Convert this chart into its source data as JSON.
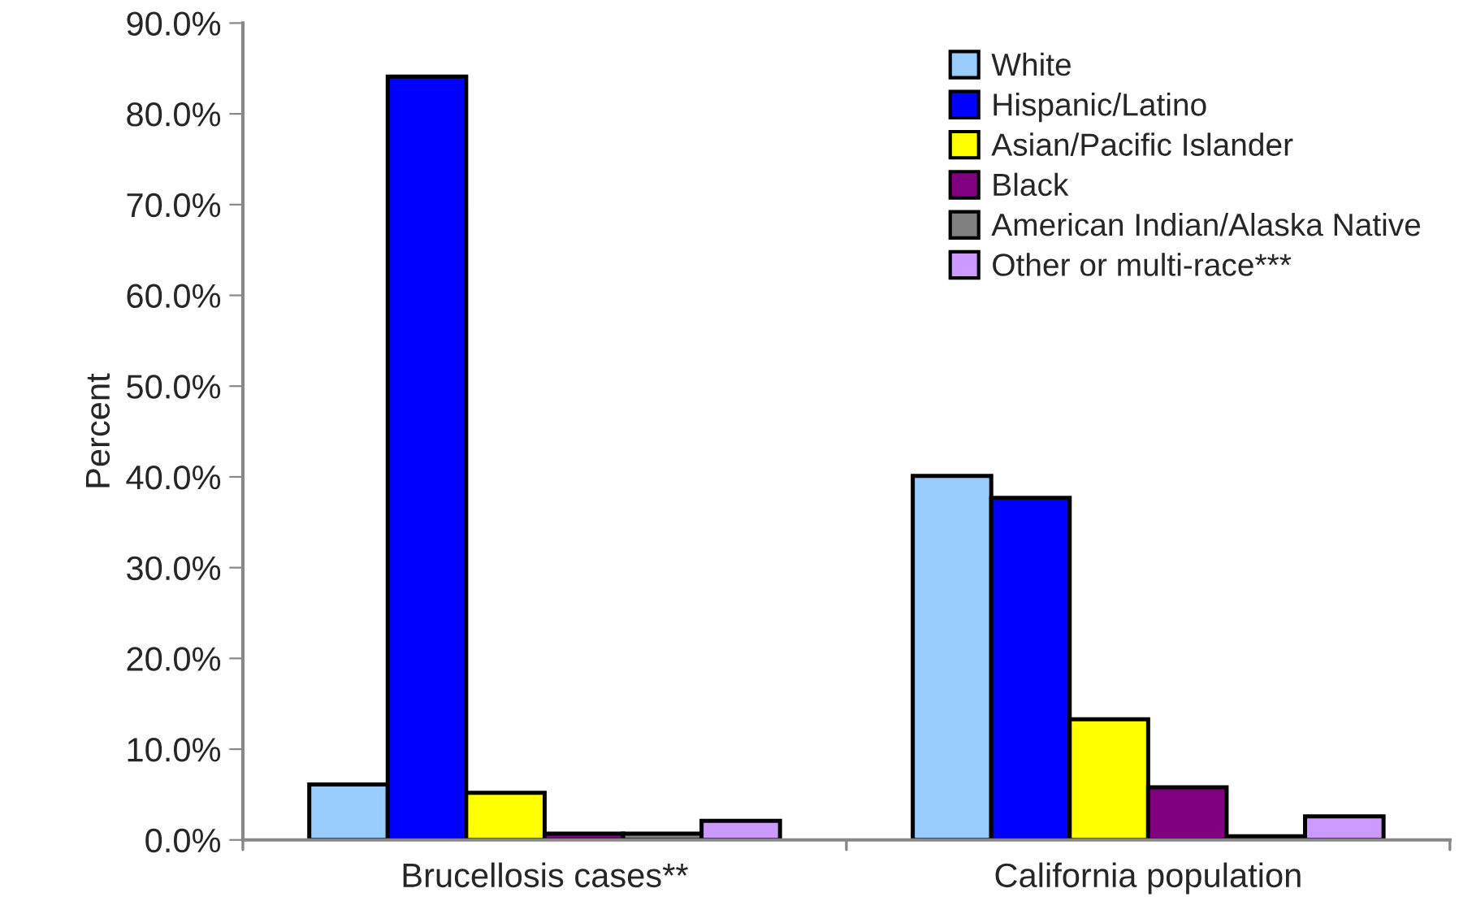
{
  "chart_data": {
    "type": "bar",
    "ylabel": "Percent",
    "categories": [
      "Brucellosis cases**",
      "California population"
    ],
    "series": [
      {
        "name": "White",
        "color": "#99ccff",
        "values": [
          6.1,
          40.1
        ]
      },
      {
        "name": "Hispanic/Latino",
        "color": "#0000ff",
        "values": [
          84.1,
          37.7
        ]
      },
      {
        "name": "Asian/Pacific Islander",
        "color": "#ffff00",
        "values": [
          5.2,
          13.3
        ]
      },
      {
        "name": "Black",
        "color": "#800080",
        "values": [
          0.7,
          5.8
        ]
      },
      {
        "name": "American Indian/Alaska Native",
        "color": "#808080",
        "values": [
          0.7,
          0.4
        ]
      },
      {
        "name": "Other or multi-race***",
        "color": "#cc99ff",
        "values": [
          2.1,
          2.6
        ]
      }
    ],
    "ylim": [
      0,
      90
    ],
    "yticks": [
      {
        "value": 0,
        "label": "0.0%"
      },
      {
        "value": 10,
        "label": "10.0%"
      },
      {
        "value": 20,
        "label": "20.0%"
      },
      {
        "value": 30,
        "label": "30.0%"
      },
      {
        "value": 40,
        "label": "40.0%"
      },
      {
        "value": 50,
        "label": "50.0%"
      },
      {
        "value": 60,
        "label": "60.0%"
      },
      {
        "value": 70,
        "label": "70.0%"
      },
      {
        "value": 80,
        "label": "80.0%"
      },
      {
        "value": 90,
        "label": "90.0%"
      }
    ],
    "grid": false,
    "legend": "top right"
  }
}
